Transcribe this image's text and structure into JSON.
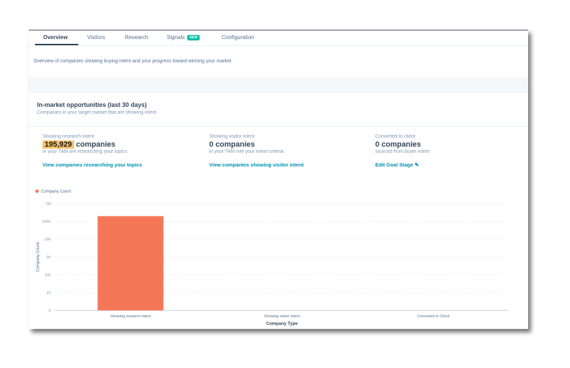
{
  "tabs": [
    {
      "label": "Overview"
    },
    {
      "label": "Visitors"
    },
    {
      "label": "Research"
    },
    {
      "label": "Signals",
      "badge": "NEW"
    },
    {
      "label": "Configuration"
    }
  ],
  "description": "Overview of companies showing buying intent and your progress toward winning your market.",
  "section": {
    "title": "In-market opportunities (last 30 days)",
    "subtitle": "Companies in your target market that are showing intent"
  },
  "metrics": [
    {
      "label": "Showing research intent",
      "number": "195,929",
      "unit": "companies",
      "sub": "in your TAM are researching your topics",
      "link": "View companies researching your topics"
    },
    {
      "label": "Showing visitor intent",
      "value": "0 companies",
      "sub": "in your TAM met your intent criteria",
      "link": "View companies showing visitor intent"
    },
    {
      "label": "Converted to client",
      "value": "0 companies",
      "sub": "sourced from buyer intent",
      "link": "Edit Goal Stage"
    }
  ],
  "colors": {
    "bar": "#f47858",
    "highlight": "#f5c26b",
    "link": "#0091ae"
  },
  "chart_data": {
    "type": "bar",
    "scale": "log",
    "legend": [
      "Company Count"
    ],
    "legend_position": "top-left",
    "categories": [
      "Showing research intent",
      "Showing visitor intent",
      "Converted to Client"
    ],
    "values": [
      195929,
      0,
      0
    ],
    "yticks": [
      "0",
      "10",
      "100",
      "1K",
      "10K",
      "100K",
      "1M"
    ],
    "xlabel": "Company Type",
    "ylabel": "Company Count",
    "grid": true
  }
}
